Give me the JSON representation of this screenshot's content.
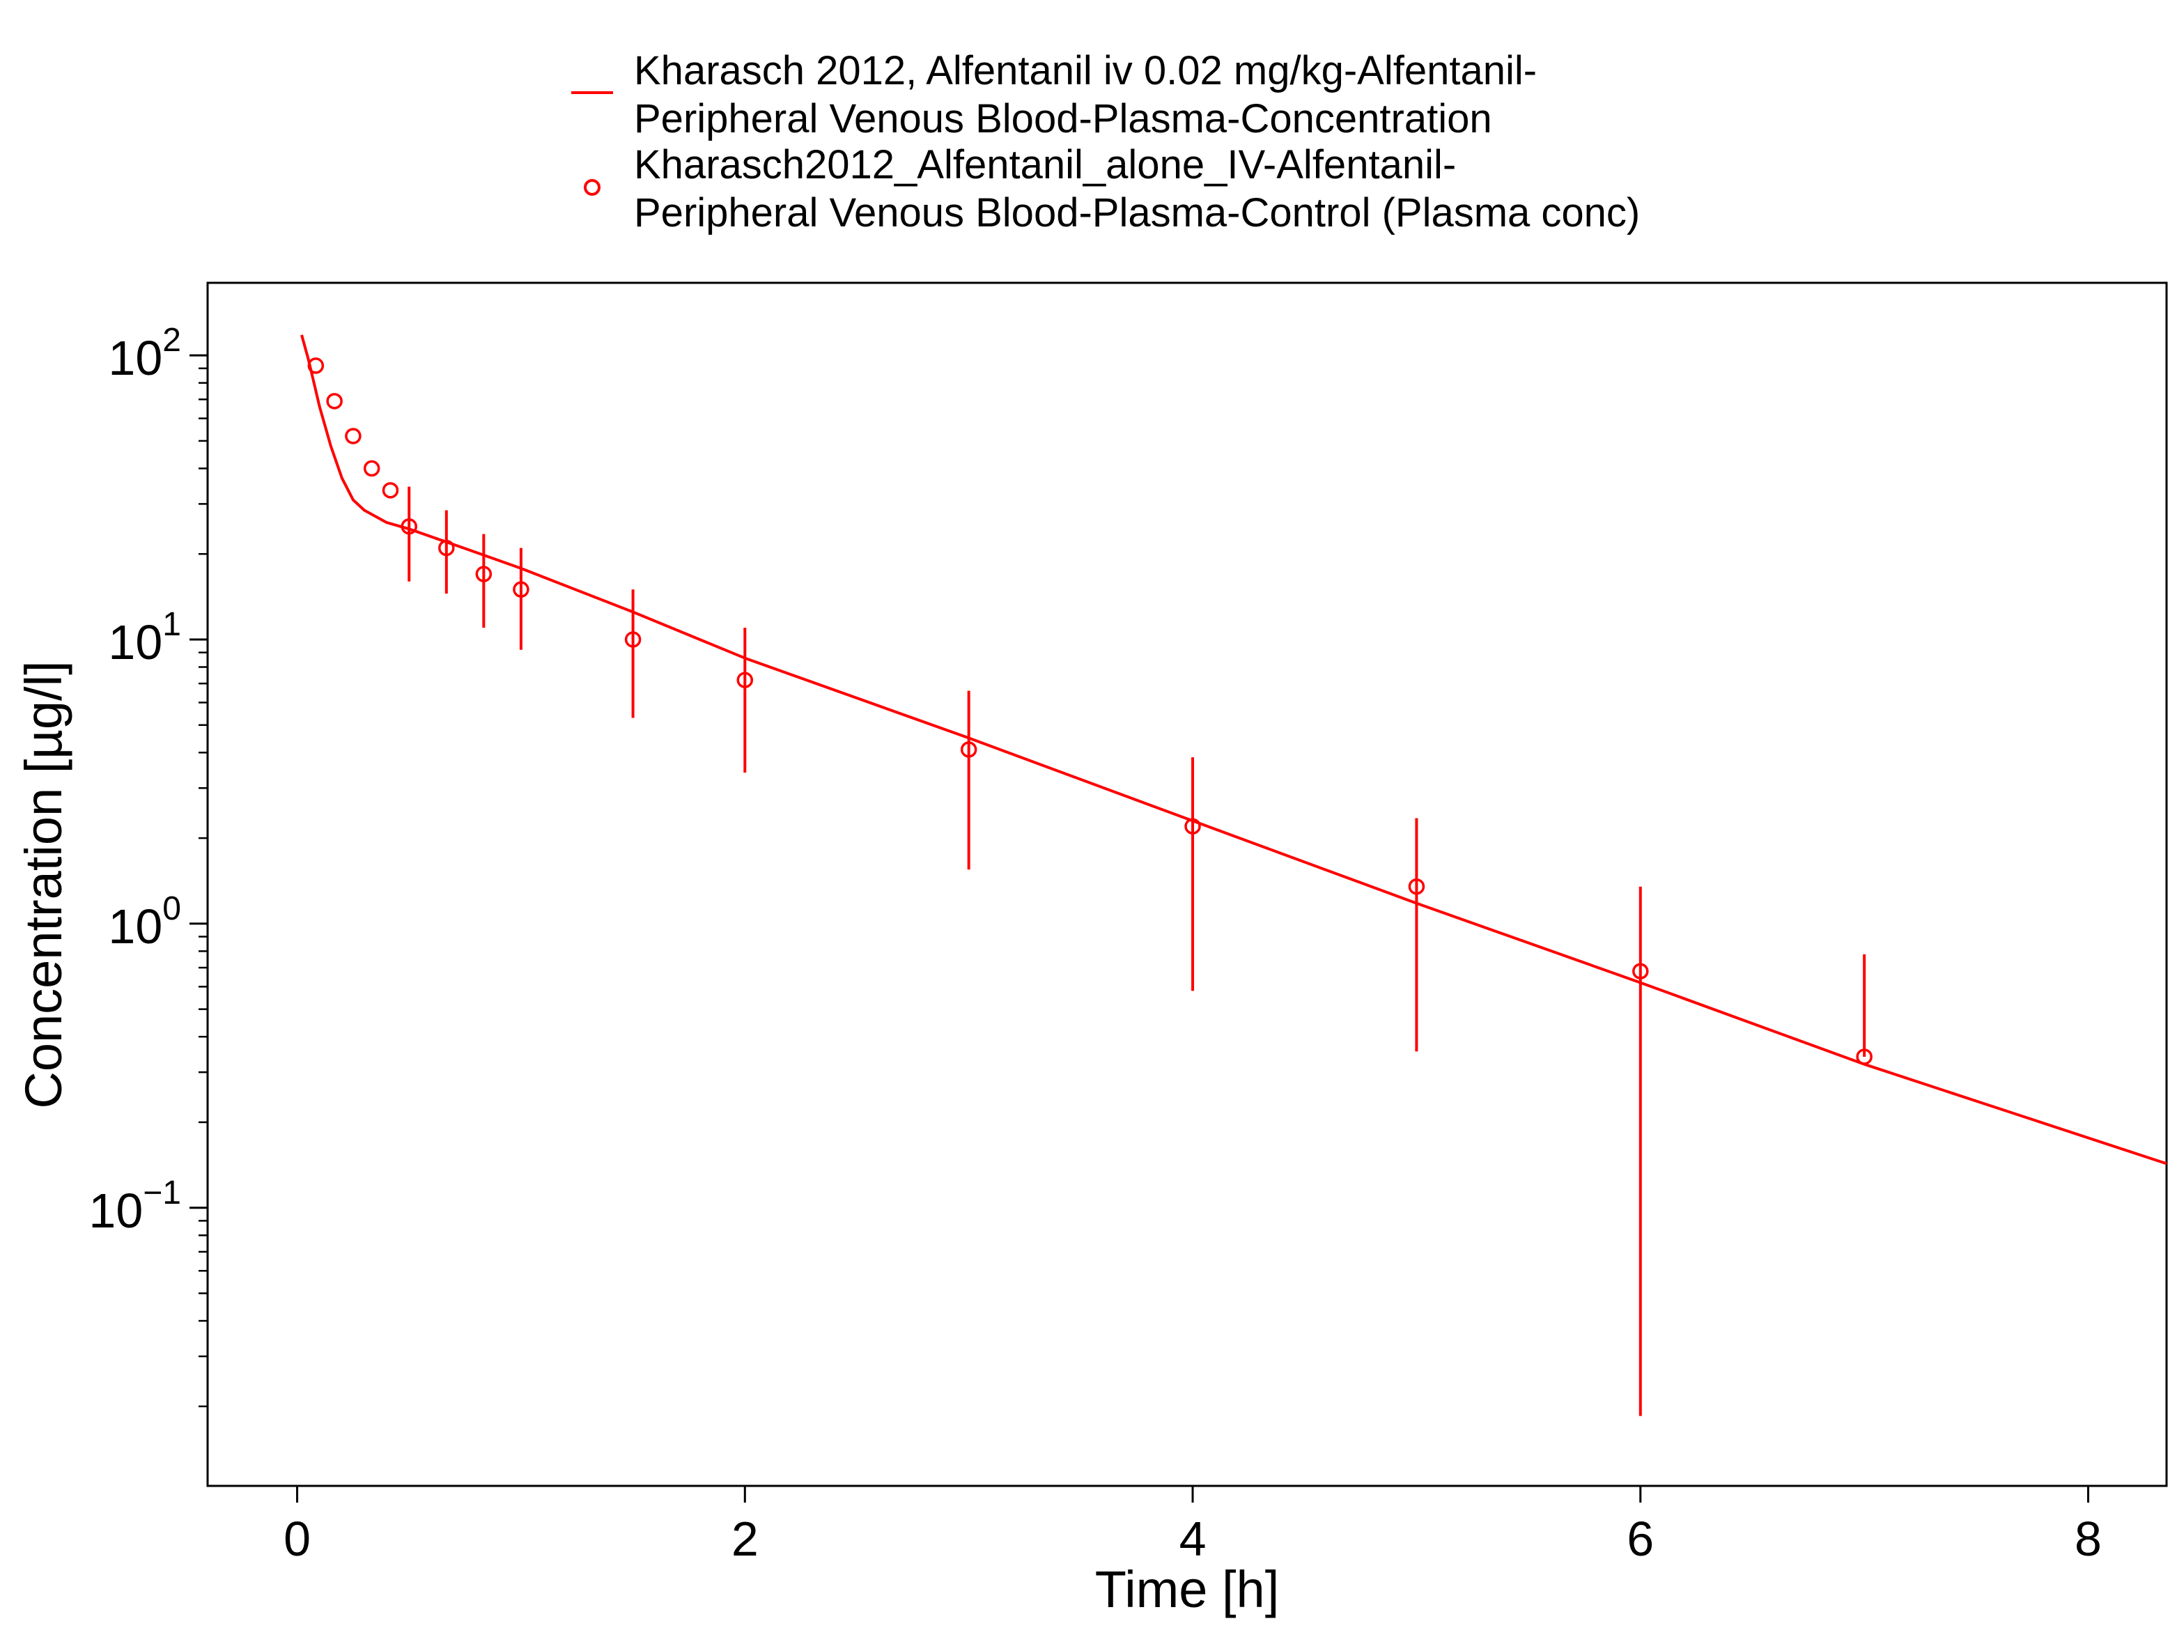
{
  "chart_data": {
    "type": "line",
    "title": "",
    "xlabel": "Time [h]",
    "ylabel": "Concentration [µg/l]",
    "xlim": [
      -0.4,
      8.35
    ],
    "ylim": [
      0.0105,
      180
    ],
    "y_scale": "log",
    "x_ticks": [
      0,
      2,
      4,
      6,
      8
    ],
    "y_ticks": [
      {
        "value": 100,
        "base": "10",
        "exp": "2"
      },
      {
        "value": 10,
        "base": "10",
        "exp": "1"
      },
      {
        "value": 1,
        "base": "10",
        "exp": "0"
      },
      {
        "value": 0.1,
        "base": "10",
        "exp": "−1"
      }
    ],
    "grid": false,
    "legend_position": "top",
    "series": [
      {
        "name": "Kharasch 2012, Alfentanil iv 0.02 mg/kg-Alfentanil-Peripheral Venous Blood-Plasma-Concentration",
        "legend_lines": [
          "Kharasch 2012, Alfentanil iv 0.02 mg/kg-Alfentanil-",
          "Peripheral Venous Blood-Plasma-Concentration"
        ],
        "kind": "line",
        "color": "#ff0000",
        "x": [
          0.02,
          0.05,
          0.08,
          0.1,
          0.15,
          0.2,
          0.25,
          0.3,
          0.4,
          0.5,
          0.75,
          1.0,
          1.5,
          2.0,
          3.0,
          4.0,
          5.0,
          6.0,
          7.0,
          8.35
        ],
        "y": [
          118,
          97,
          77,
          66,
          48,
          37,
          31,
          28.5,
          25.8,
          24.5,
          20.9,
          17.8,
          12.5,
          8.6,
          4.5,
          2.3,
          1.18,
          0.62,
          0.32,
          0.143
        ]
      },
      {
        "name": "Kharasch2012_Alfentanil_alone_IV-Alfentanil-Peripheral Venous Blood-Plasma-Control (Plasma conc)",
        "legend_lines": [
          "Kharasch2012_Alfentanil_alone_IV-Alfentanil-",
          "Peripheral Venous Blood-Plasma-Control (Plasma conc)"
        ],
        "kind": "scatter",
        "color": "#ff0000",
        "points": [
          {
            "x": 0.0833,
            "y": 92
          },
          {
            "x": 0.1667,
            "y": 69
          },
          {
            "x": 0.25,
            "y": 52
          },
          {
            "x": 0.3333,
            "y": 40
          },
          {
            "x": 0.4167,
            "y": 33.5
          },
          {
            "x": 0.5,
            "y": 25.0,
            "low": 16.0,
            "high": 34.5
          },
          {
            "x": 0.6667,
            "y": 21.0,
            "low": 14.5,
            "high": 28.5
          },
          {
            "x": 0.8333,
            "y": 17.0,
            "low": 11.0,
            "high": 23.5
          },
          {
            "x": 1.0,
            "y": 15.0,
            "low": 9.2,
            "high": 21.0
          },
          {
            "x": 1.5,
            "y": 10.0,
            "low": 5.3,
            "high": 15.0
          },
          {
            "x": 2.0,
            "y": 7.2,
            "low": 3.4,
            "high": 11.0
          },
          {
            "x": 3.0,
            "y": 4.1,
            "low": 1.55,
            "high": 6.6
          },
          {
            "x": 4.0,
            "y": 2.2,
            "low": 0.58,
            "high": 3.85
          },
          {
            "x": 5.0,
            "y": 1.35,
            "low": 0.355,
            "high": 2.35
          },
          {
            "x": 6.0,
            "y": 0.68,
            "low": 0.0185,
            "high": 1.35
          },
          {
            "x": 7.0,
            "y": 0.34,
            "low": 0.34,
            "high": 0.78
          }
        ]
      }
    ]
  }
}
